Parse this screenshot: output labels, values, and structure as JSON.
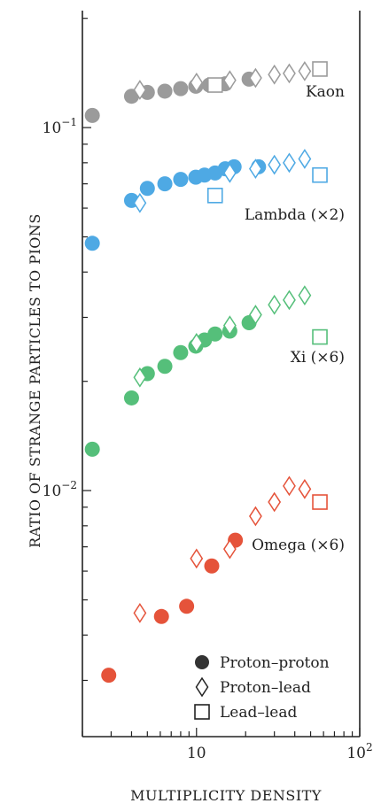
{
  "chart_data": {
    "type": "scatter",
    "title": "",
    "xlabel": "MULTIPLICITY DENSITY",
    "ylabel": "RATIO OF STRANGE PARTICLES TO PIONS",
    "xscale": "log",
    "yscale": "log",
    "xlim": [
      2.0,
      100
    ],
    "ylim": [
      0.0021,
      0.21
    ],
    "x_ticks": [
      {
        "value": 10,
        "label": "10"
      },
      {
        "value": 100,
        "label": "10",
        "sup": "2"
      }
    ],
    "y_ticks": [
      {
        "value": 0.1,
        "label": "10",
        "sup": "−1"
      },
      {
        "value": 0.01,
        "label": "10",
        "sup": "−2"
      }
    ],
    "grid": false,
    "legend": {
      "position": "bottom-right",
      "entries": [
        {
          "marker": "circle",
          "label": "Proton–proton"
        },
        {
          "marker": "diamond",
          "label": "Proton–lead"
        },
        {
          "marker": "square",
          "label": "Lead–lead"
        }
      ]
    },
    "series": [
      {
        "name": "Kaon",
        "color": "#9b9b9b",
        "proton_proton": {
          "x": [
            2.3,
            4.0,
            5.0,
            6.4,
            8.0,
            9.9,
            12.0,
            15.0,
            21.0
          ],
          "y": [
            0.108,
            0.122,
            0.125,
            0.126,
            0.128,
            0.13,
            0.131,
            0.132,
            0.136
          ]
        },
        "proton_lead": {
          "x": [
            4.5,
            10.0,
            16.0,
            23.0,
            30.0,
            37.0,
            46.0
          ],
          "y": [
            0.127,
            0.133,
            0.135,
            0.137,
            0.14,
            0.141,
            0.143
          ]
        },
        "lead_lead": {
          "x": [
            13.0,
            57.0
          ],
          "y": [
            0.131,
            0.145
          ]
        }
      },
      {
        "name": "Lambda (×2)",
        "color": "#4ea9e4",
        "proton_proton": {
          "x": [
            2.3,
            4.0,
            5.0,
            6.4,
            8.0,
            9.9,
            11.2,
            13.0,
            15.0,
            17.0,
            24.0
          ],
          "y": [
            0.048,
            0.063,
            0.068,
            0.07,
            0.072,
            0.073,
            0.074,
            0.075,
            0.077,
            0.078,
            0.078
          ]
        },
        "proton_lead": {
          "x": [
            4.5,
            16.0,
            23.0,
            30.0,
            37.0,
            46.0
          ],
          "y": [
            0.062,
            0.075,
            0.077,
            0.079,
            0.08,
            0.082
          ]
        },
        "lead_lead": {
          "x": [
            13.0,
            57.0
          ],
          "y": [
            0.065,
            0.074
          ]
        }
      },
      {
        "name": "Xi (×6)",
        "color": "#55bf7a",
        "proton_proton": {
          "x": [
            2.3,
            4.0,
            5.0,
            6.4,
            8.0,
            9.9,
            11.2,
            13.0,
            16.0,
            21.0
          ],
          "y": [
            0.013,
            0.018,
            0.021,
            0.022,
            0.024,
            0.025,
            0.026,
            0.027,
            0.0275,
            0.029
          ]
        },
        "proton_lead": {
          "x": [
            4.5,
            10.0,
            16.0,
            23.0,
            30.0,
            37.0,
            46.0
          ],
          "y": [
            0.0205,
            0.0255,
            0.0285,
            0.0305,
            0.0325,
            0.0335,
            0.0345
          ]
        },
        "lead_lead": {
          "x": [
            57.0
          ],
          "y": [
            0.0265
          ]
        }
      },
      {
        "name": "Omega (×6)",
        "color": "#e5533a",
        "proton_proton": {
          "x": [
            2.9,
            6.1,
            8.7,
            12.4,
            17.3
          ],
          "y": [
            0.0031,
            0.0045,
            0.0048,
            0.0062,
            0.0073
          ]
        },
        "proton_lead": {
          "x": [
            4.5,
            10.0,
            16.0,
            23.0,
            30.0,
            37.0,
            46.0
          ],
          "y": [
            0.0046,
            0.0065,
            0.0069,
            0.0085,
            0.0093,
            0.0103,
            0.0101
          ]
        },
        "lead_lead": {
          "x": [
            57.0
          ],
          "y": [
            0.0093
          ]
        }
      }
    ]
  }
}
